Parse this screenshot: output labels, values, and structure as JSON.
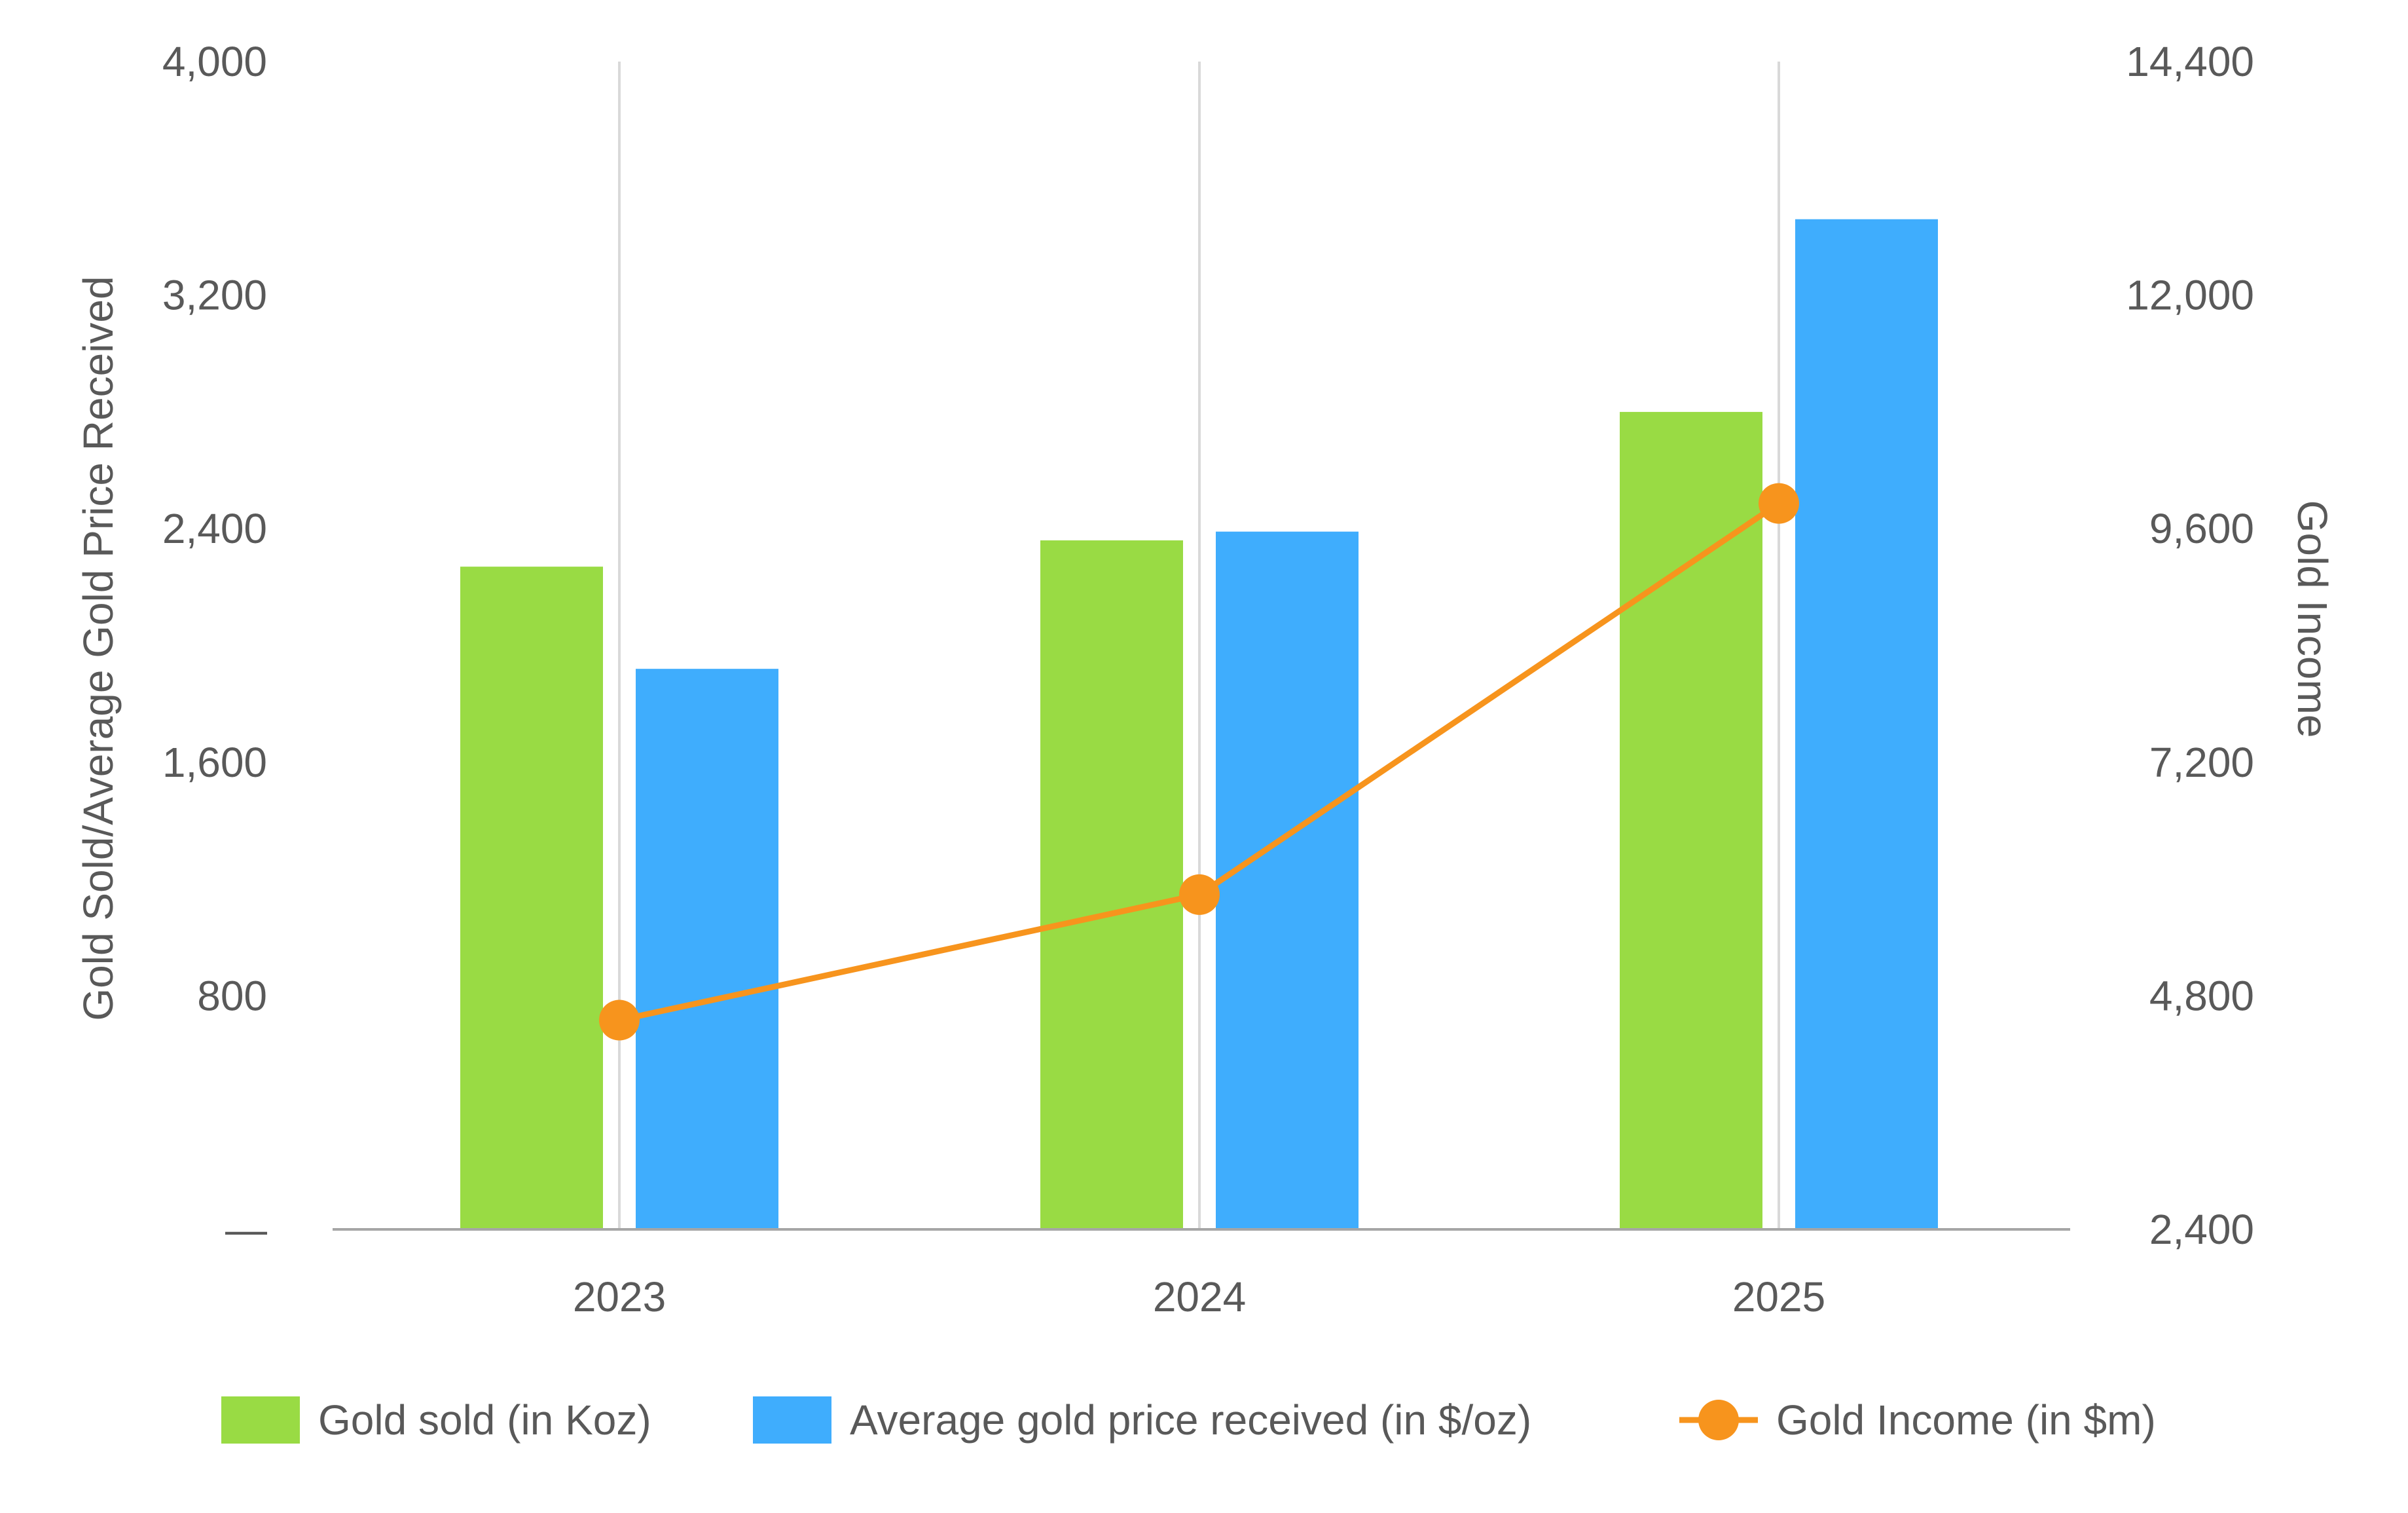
{
  "chart_data": {
    "type": "bar",
    "categories": [
      "2023",
      "2024",
      "2025"
    ],
    "series": [
      {
        "name": "Gold sold (in Koz)",
        "type": "bar",
        "axis": "left",
        "color": "#99db44",
        "values": [
          2270,
          2360,
          2800
        ]
      },
      {
        "name": "Average gold price received (in $/oz)",
        "type": "bar",
        "axis": "left",
        "color": "#3fadfd",
        "values": [
          1920,
          2390,
          3460
        ]
      },
      {
        "name": "Gold Income (in $m)",
        "type": "line",
        "axis": "right",
        "color": "#f7941d",
        "values": [
          4550,
          5840,
          9860
        ]
      }
    ],
    "ylabel": "Gold Sold/Average Gold Price Received",
    "y2label": "Gold Income",
    "ylim": [
      0,
      4000
    ],
    "y2lim": [
      2400,
      14400
    ],
    "yticks": [
      "—",
      "800",
      "1,600",
      "2,400",
      "3,200",
      "4,000"
    ],
    "y2ticks": [
      "2,400",
      "4,800",
      "7,200",
      "9,600",
      "12,000",
      "14,400"
    ],
    "legend_position": "bottom",
    "vertical_gridlines": true
  }
}
